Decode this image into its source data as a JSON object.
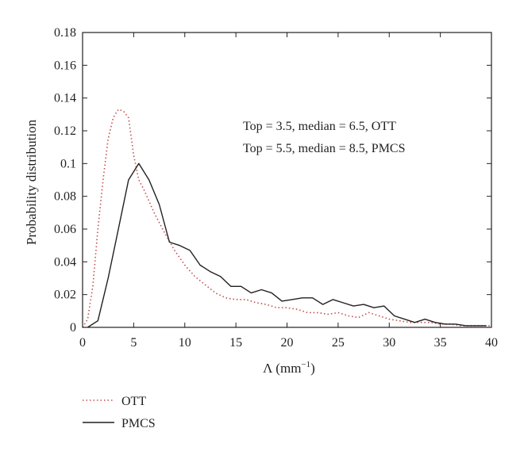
{
  "chart_data": {
    "type": "line",
    "xlabel": "Λ (mm",
    "xlabel_sup": "−1",
    "xlabel_close": ")",
    "ylabel": "Probability distribution",
    "xlim": [
      0,
      40
    ],
    "ylim": [
      0,
      0.18
    ],
    "xticks": [
      0,
      5,
      10,
      15,
      20,
      25,
      30,
      35,
      40
    ],
    "xtick_labels": [
      "0",
      "5",
      "10",
      "15",
      "20",
      "25",
      "30",
      "35",
      "40"
    ],
    "yticks": [
      0,
      0.02,
      0.04,
      0.06,
      0.08,
      0.1,
      0.12,
      0.14,
      0.16,
      0.18
    ],
    "ytick_labels": [
      "0",
      "0.02",
      "0.04",
      "0.06",
      "0.08",
      "0.1",
      "0.12",
      "0.14",
      "0.16",
      "0.18"
    ],
    "grid": false,
    "legend_placement": "below-left",
    "annotations": [
      "Top = 3.5, median = 6.5, OTT",
      "Top = 5.5, median = 8.5, PMCS"
    ],
    "series": [
      {
        "name": "OTT",
        "line_style": "dotted",
        "color": "#c0504d",
        "x": [
          0,
          0.5,
          1,
          1.5,
          2,
          2.5,
          3,
          3.5,
          4,
          4.5,
          5,
          5.5,
          6,
          7,
          8,
          9,
          10,
          11,
          12,
          13,
          14,
          15,
          16,
          17,
          18,
          19,
          20,
          21,
          22,
          23,
          24,
          25,
          26,
          27,
          28,
          29,
          30,
          31,
          32,
          33,
          34,
          35,
          36,
          37,
          38,
          39,
          40
        ],
        "y": [
          0,
          0.005,
          0.025,
          0.06,
          0.09,
          0.115,
          0.128,
          0.133,
          0.132,
          0.128,
          0.105,
          0.09,
          0.084,
          0.07,
          0.058,
          0.047,
          0.038,
          0.031,
          0.026,
          0.021,
          0.018,
          0.017,
          0.017,
          0.015,
          0.014,
          0.012,
          0.012,
          0.011,
          0.009,
          0.009,
          0.008,
          0.009,
          0.007,
          0.006,
          0.009,
          0.007,
          0.005,
          0.004,
          0.003,
          0.003,
          0.003,
          0.002,
          0.002,
          0.001,
          0.001,
          0.001,
          0.001
        ]
      },
      {
        "name": "PMCS",
        "line_style": "solid",
        "color": "#231f20",
        "x": [
          0.5,
          1.5,
          2.5,
          3.5,
          4.5,
          5.5,
          6.5,
          7.5,
          8.5,
          9.5,
          10.5,
          11.5,
          12.5,
          13.5,
          14.5,
          15.5,
          16.5,
          17.5,
          18.5,
          19.5,
          20.5,
          21.5,
          22.5,
          23.5,
          24.5,
          25.5,
          26.5,
          27.5,
          28.5,
          29.5,
          30.5,
          31.5,
          32.5,
          33.5,
          34.5,
          35.5,
          36.5,
          37.5,
          38.5,
          39.5
        ],
        "y": [
          0,
          0.004,
          0.03,
          0.06,
          0.09,
          0.1,
          0.09,
          0.075,
          0.052,
          0.05,
          0.047,
          0.038,
          0.034,
          0.031,
          0.025,
          0.025,
          0.021,
          0.023,
          0.021,
          0.016,
          0.017,
          0.018,
          0.018,
          0.014,
          0.017,
          0.015,
          0.013,
          0.014,
          0.012,
          0.013,
          0.007,
          0.005,
          0.003,
          0.005,
          0.003,
          0.002,
          0.002,
          0.001,
          0.001,
          0.001
        ]
      }
    ]
  }
}
